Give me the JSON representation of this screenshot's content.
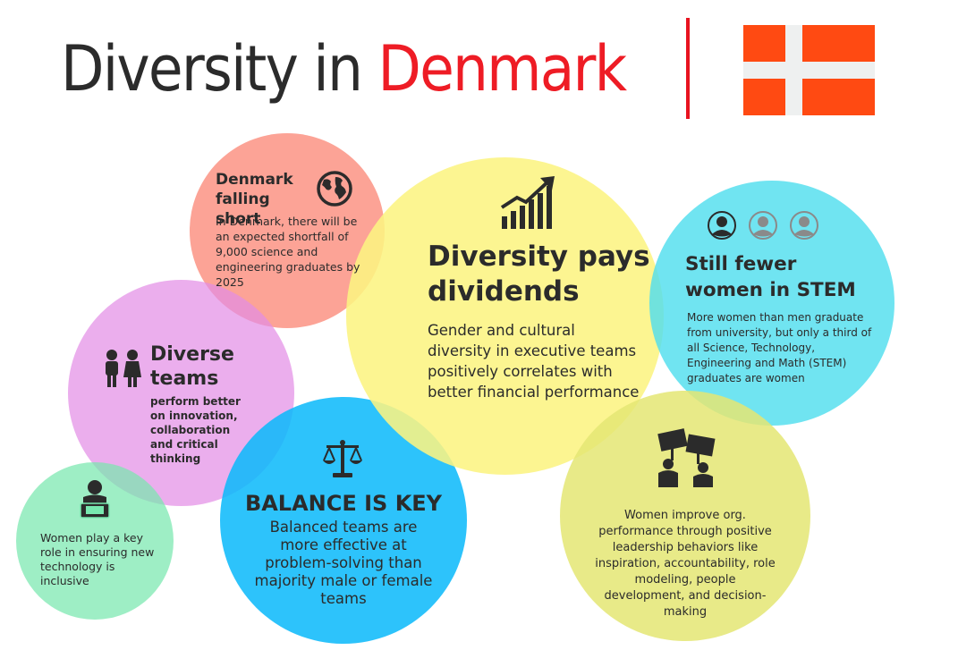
{
  "title": {
    "part1": "Diversity in ",
    "part2": "Denmark"
  },
  "colors": {
    "accent_red": "#ee1c25",
    "flag_red": "#ff4a12",
    "flag_cross": "#eef0f0",
    "text": "#2b2b2b"
  },
  "icons": [
    "flag-denmark",
    "globe-icon",
    "rising-bars-chart-icon",
    "women-avatars-icon",
    "children-icon",
    "person-laptop-icon",
    "scales-icon",
    "protest-signs-icon"
  ],
  "bubbles": {
    "falling_short": {
      "title_line1": "Denmark",
      "title_line2": "falling short",
      "body": "In Denmark, there will be an expected shortfall of 9,000 science and engineering graduates by 2025"
    },
    "dividends": {
      "title_line1": "Diversity pays",
      "title_line2": "dividends",
      "body": "Gender and cultural diversity in executive teams positively correlates with better financial performance"
    },
    "stem": {
      "title_line1": "Still fewer",
      "title_line2": "women in STEM",
      "body": "More women than men graduate from university, but only a third of all Science, Technology, Engineering and Math (STEM) graduates are women"
    },
    "diverse_teams": {
      "title_line1": "Diverse",
      "title_line2": "teams",
      "body": "perform better on innovation, collaboration and critical thinking"
    },
    "technology": {
      "body": "Women play a key role in ensuring new technology is inclusive"
    },
    "balance": {
      "title": "BALANCE IS KEY",
      "body": "Balanced teams are more effective at problem-solving than majority male or female teams"
    },
    "leadership": {
      "body": "Women improve org. performance through positive leadership behaviors like inspiration, accountability, role modeling, people development, and decision-making"
    }
  }
}
